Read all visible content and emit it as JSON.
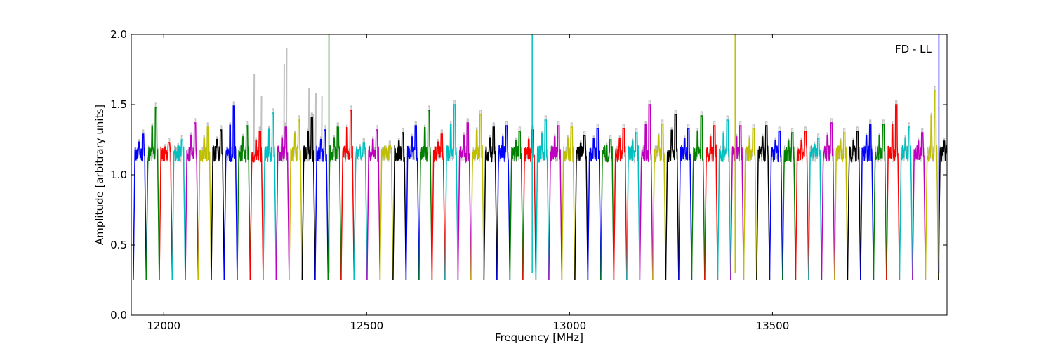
{
  "chart_data": {
    "type": "line",
    "xlabel": "Frequency [MHz]",
    "ylabel": "Amplitude [arbitrary units]",
    "annotation": "FD - LL",
    "xlim": [
      11920,
      13930
    ],
    "ylim": [
      0.0,
      2.0
    ],
    "xticks": [
      12000,
      12500,
      13000,
      13500
    ],
    "xtick_labels": [
      "12000",
      "12500",
      "13000",
      "13500"
    ],
    "yticks": [
      0.0,
      0.5,
      1.0,
      1.5,
      2.0
    ],
    "ytick_labels": [
      "0.0",
      "0.5",
      "1.0",
      "1.5",
      "2.0"
    ],
    "grid": false,
    "legend": "none",
    "channel_width_mhz": 32,
    "channel_shape": {
      "edge_width_mhz": 4,
      "floor": 0.25,
      "plateau": 1.15,
      "ripple": 0.12
    },
    "background_series": {
      "color": "#c0c0c0",
      "description": "grey underlying trace",
      "spikes": [
        {
          "x": 12222,
          "y": 1.72
        },
        {
          "x": 12240,
          "y": 1.56
        },
        {
          "x": 12296,
          "y": 1.79
        },
        {
          "x": 12302,
          "y": 1.9
        },
        {
          "x": 12357,
          "y": 1.62
        },
        {
          "x": 12368,
          "y": 1.43
        },
        {
          "x": 12374,
          "y": 1.58
        },
        {
          "x": 12389,
          "y": 1.56
        }
      ]
    },
    "color_cycle": [
      "#0000ff",
      "#008000",
      "#ff0000",
      "#00bfbf",
      "#bf00bf",
      "#bfbf00",
      "#000000"
    ],
    "series_peaks": [
      1.29,
      1.48,
      1.23,
      1.25,
      1.37,
      1.34,
      1.32,
      1.49,
      1.35,
      1.31,
      1.44,
      1.34,
      1.39,
      1.41,
      1.32,
      1.34,
      1.46,
      1.23,
      1.32,
      1.21,
      1.3,
      1.35,
      1.46,
      1.29,
      1.5,
      1.37,
      1.43,
      1.34,
      1.35,
      1.31,
      1.32,
      1.39,
      1.35,
      1.34,
      1.28,
      1.33,
      1.25,
      1.33,
      1.3,
      1.5,
      1.36,
      1.43,
      1.33,
      1.42,
      1.35,
      1.39,
      1.35,
      1.33,
      1.35,
      1.31,
      1.3,
      1.31,
      1.26,
      1.37,
      1.3,
      1.31,
      1.36,
      1.36,
      1.5,
      1.34,
      1.3,
      1.6,
      1.3
    ],
    "rfi_spikes": [
      {
        "x": 12407,
        "y": 2.0,
        "color": "#008000"
      },
      {
        "x": 12908,
        "y": 2.0,
        "color": "#00bfbf"
      },
      {
        "x": 13408,
        "y": 2.0,
        "color": "#bfbf00"
      },
      {
        "x": 13910,
        "y": 2.0,
        "color": "#0000ff"
      }
    ]
  }
}
